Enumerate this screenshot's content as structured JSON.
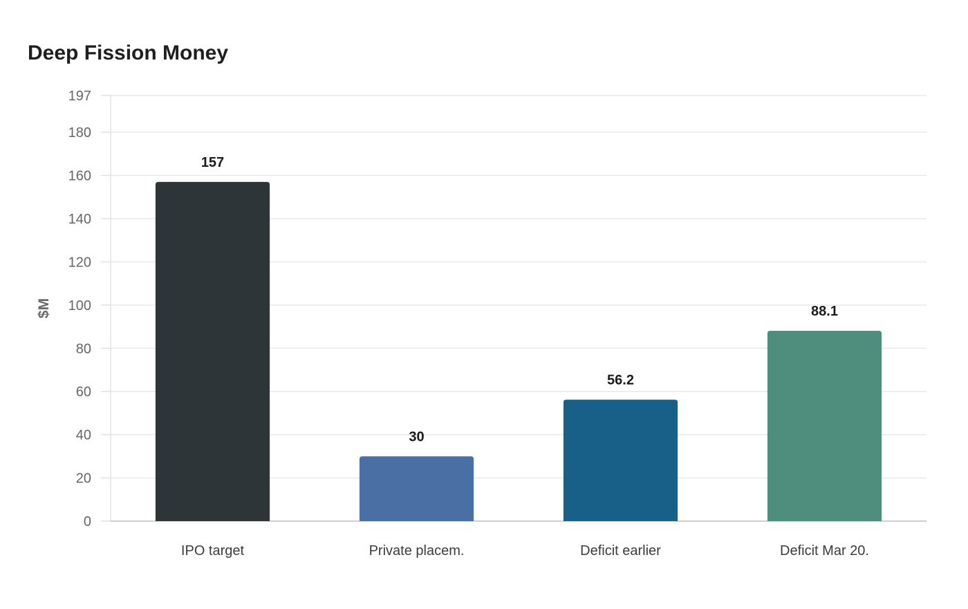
{
  "chart_data": {
    "type": "bar",
    "title": "Deep Fission Money",
    "xlabel": "",
    "ylabel": "$M",
    "ylim": [
      0,
      197
    ],
    "yticks": [
      0,
      20,
      40,
      60,
      80,
      100,
      120,
      140,
      160,
      180,
      197
    ],
    "grid": true,
    "legend": "none",
    "categories": [
      "IPO target",
      "Private placem.",
      "Deficit earlier",
      "Deficit Mar 20."
    ],
    "values": [
      157,
      30,
      56.2,
      88.1
    ],
    "data_labels": [
      "157",
      "30",
      "56.2",
      "88.1"
    ],
    "colors": [
      "#2e3538",
      "#4a6fa5",
      "#196088",
      "#4f8e7c"
    ]
  }
}
